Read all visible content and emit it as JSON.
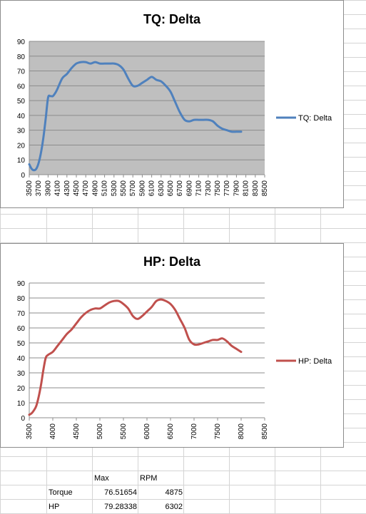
{
  "sheet": {
    "header": {
      "max": "Max",
      "rpm": "RPM"
    },
    "rows": [
      {
        "label": "Torque",
        "max": "76.51654",
        "rpm": "4875"
      },
      {
        "label": "HP",
        "max": "79.28338",
        "rpm": "6302"
      }
    ]
  },
  "chart_data": [
    {
      "type": "line",
      "title": "TQ: Delta",
      "xlim": [
        3500,
        8500
      ],
      "ylim": [
        0,
        90
      ],
      "x_ticks": [
        "3500",
        "3700",
        "3900",
        "4100",
        "4300",
        "4500",
        "4700",
        "4900",
        "5100",
        "5300",
        "5500",
        "5700",
        "5900",
        "6100",
        "6300",
        "6500",
        "6700",
        "6900",
        "7100",
        "7300",
        "7500",
        "7700",
        "7900",
        "8100",
        "8300",
        "8500"
      ],
      "y_ticks": [
        "0",
        "10",
        "20",
        "30",
        "40",
        "50",
        "60",
        "70",
        "80",
        "90"
      ],
      "grid": true,
      "legend": "right",
      "color": "#4f81bd",
      "series": [
        {
          "name": "TQ: Delta",
          "x": [
            3500,
            3550,
            3600,
            3650,
            3700,
            3750,
            3800,
            3850,
            3900,
            3950,
            4000,
            4050,
            4100,
            4200,
            4300,
            4400,
            4500,
            4600,
            4700,
            4800,
            4900,
            5000,
            5100,
            5200,
            5300,
            5400,
            5500,
            5600,
            5700,
            5800,
            5900,
            6000,
            6100,
            6200,
            6300,
            6400,
            6500,
            6600,
            6700,
            6800,
            6900,
            7000,
            7100,
            7200,
            7300,
            7400,
            7500,
            7600,
            7700,
            7800,
            7900,
            8000
          ],
          "values": [
            7,
            4,
            3,
            4,
            8,
            15,
            25,
            38,
            52,
            53,
            53,
            55,
            58,
            65,
            68,
            72,
            75,
            76,
            76,
            75,
            76,
            75,
            75,
            75,
            75,
            74,
            71,
            65,
            60,
            60,
            62,
            64,
            66,
            64,
            63,
            60,
            56,
            49,
            42,
            37,
            36,
            37,
            37,
            37,
            37,
            36,
            33,
            31,
            30,
            29,
            29,
            29
          ]
        }
      ]
    },
    {
      "type": "line",
      "title": "HP: Delta",
      "xlim": [
        3500,
        8500
      ],
      "ylim": [
        0,
        90
      ],
      "x_ticks": [
        "3500",
        "4000",
        "4500",
        "5000",
        "5500",
        "6000",
        "6500",
        "7000",
        "7500",
        "8000",
        "8500"
      ],
      "y_ticks": [
        "0",
        "10",
        "20",
        "30",
        "40",
        "50",
        "60",
        "70",
        "80",
        "90"
      ],
      "grid": true,
      "legend": "right",
      "color": "#c0504d",
      "series": [
        {
          "name": "HP: Delta",
          "x": [
            3500,
            3550,
            3600,
            3650,
            3700,
            3750,
            3800,
            3850,
            3900,
            4000,
            4100,
            4200,
            4300,
            4400,
            4500,
            4600,
            4700,
            4800,
            4900,
            5000,
            5100,
            5200,
            5300,
            5400,
            5500,
            5600,
            5700,
            5800,
            5900,
            6000,
            6100,
            6200,
            6300,
            6400,
            6500,
            6600,
            6700,
            6800,
            6900,
            7000,
            7100,
            7200,
            7300,
            7400,
            7500,
            7600,
            7700,
            7800,
            7900,
            8000
          ],
          "values": [
            2,
            3,
            5,
            8,
            14,
            22,
            32,
            40,
            42,
            44,
            48,
            52,
            56,
            59,
            63,
            67,
            70,
            72,
            73,
            73,
            75,
            77,
            78,
            78,
            76,
            73,
            68,
            66,
            68,
            71,
            74,
            78,
            79,
            78,
            76,
            72,
            66,
            60,
            52,
            49,
            49,
            50,
            51,
            52,
            52,
            53,
            51,
            48,
            46,
            44
          ]
        }
      ]
    }
  ]
}
